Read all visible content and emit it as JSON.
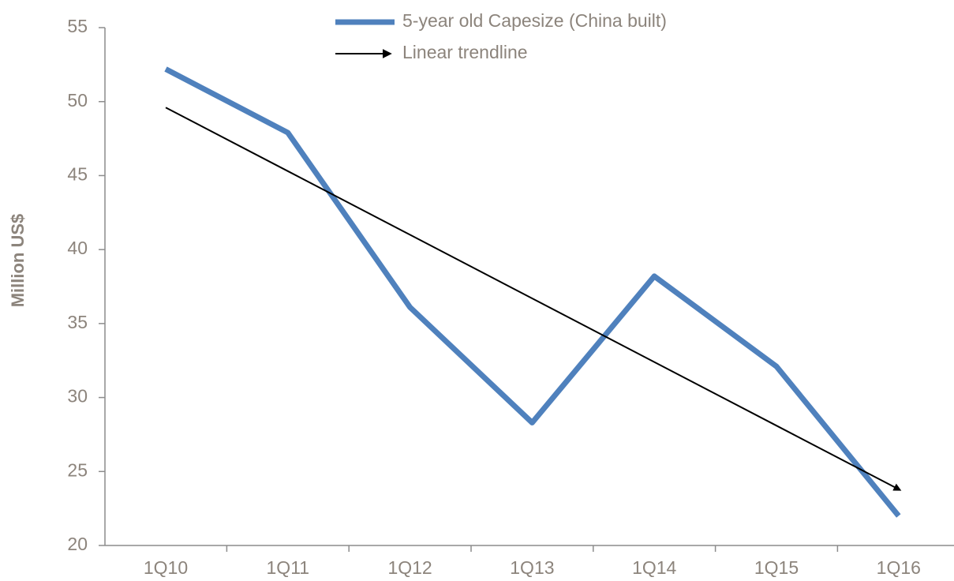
{
  "chart_data": {
    "type": "line",
    "y_label": "Million US$",
    "categories": [
      "1Q10",
      "1Q11",
      "1Q12",
      "1Q13",
      "1Q14",
      "1Q15",
      "1Q16"
    ],
    "series": [
      {
        "name": "5-year old Capesize (China built)",
        "color": "#4f81bd",
        "line_width": 7,
        "arrow_end": false,
        "values": [
          52.2,
          47.9,
          36.1,
          28.3,
          38.2,
          32.1,
          22.0
        ]
      },
      {
        "name": "Linear trendline",
        "color": "#000000",
        "line_width": 2,
        "arrow_end": true,
        "values": [
          49.6,
          45.3,
          41.0,
          36.7,
          32.4,
          28.1,
          23.8
        ]
      }
    ],
    "ylim": [
      20,
      55
    ],
    "yticks": [
      20,
      25,
      30,
      35,
      40,
      45,
      50,
      55
    ],
    "grid": false,
    "legend": "top"
  }
}
